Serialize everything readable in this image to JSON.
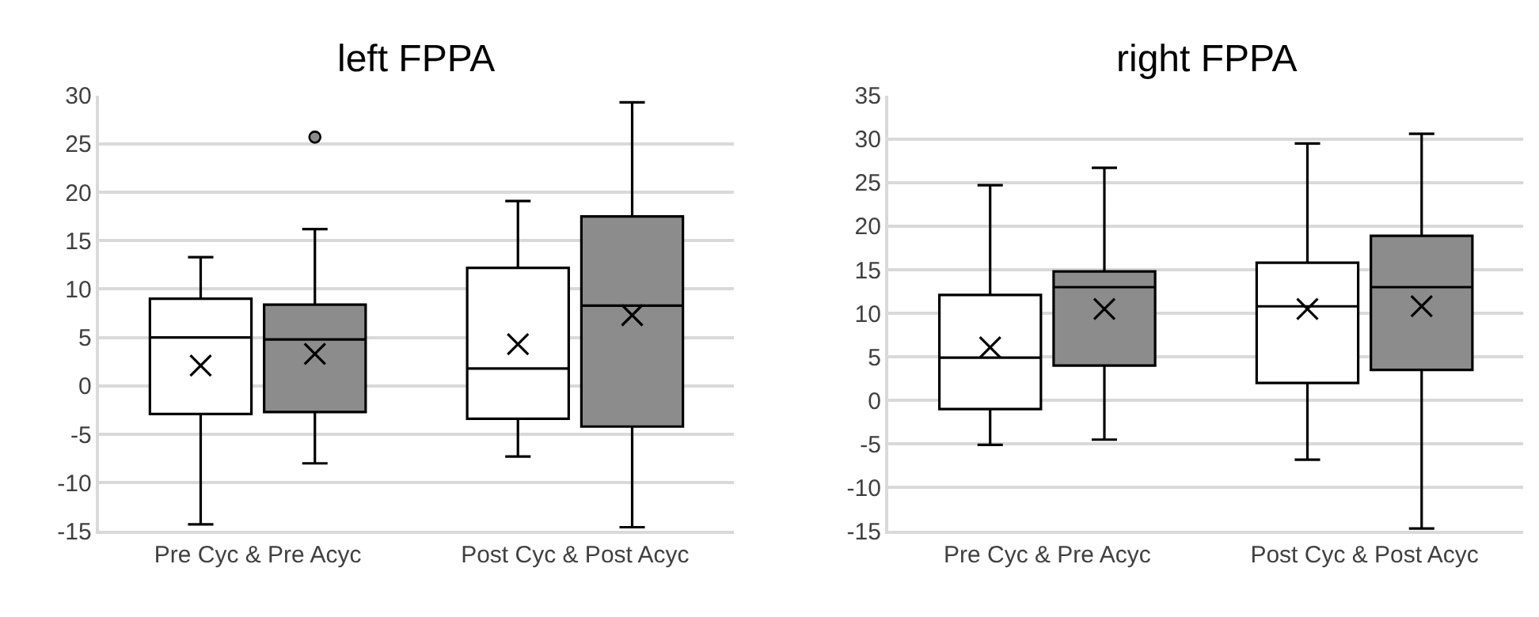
{
  "chart_data": [
    {
      "type": "box",
      "title": "left FPPA",
      "categories": [
        "Pre Cyc & Pre Acyc",
        "Post Cyc & Post Acyc"
      ],
      "ylim": [
        -15,
        30
      ],
      "yticks": [
        -15,
        -10,
        -5,
        0,
        5,
        10,
        15,
        20,
        25,
        30
      ],
      "grid": "y",
      "series": [
        {
          "color": "#ffffff",
          "boxes": [
            {
              "low": -14.3,
              "q1": -2.9,
              "median": 5.0,
              "q3": 9.0,
              "high": 13.3,
              "mean": 2.1
            },
            {
              "low": -7.3,
              "q1": -3.4,
              "median": 1.8,
              "q3": 12.2,
              "high": 19.1,
              "mean": 4.3
            }
          ]
        },
        {
          "color": "#8c8c8c",
          "boxes": [
            {
              "low": -8.0,
              "q1": -2.7,
              "median": 4.8,
              "q3": 8.4,
              "high": 16.2,
              "mean": 3.3,
              "outliers": [
                25.7
              ]
            },
            {
              "low": -14.6,
              "q1": -4.2,
              "median": 8.3,
              "q3": 17.5,
              "high": 29.3,
              "mean": 7.3
            }
          ]
        }
      ]
    },
    {
      "type": "box",
      "title": "right FPPA",
      "categories": [
        "Pre Cyc & Pre Acyc",
        "Post Cyc & Post Acyc"
      ],
      "ylim": [
        -15,
        35
      ],
      "yticks": [
        -15,
        -10,
        -5,
        0,
        5,
        10,
        15,
        20,
        25,
        30,
        35
      ],
      "grid": "y",
      "series": [
        {
          "color": "#ffffff",
          "boxes": [
            {
              "low": -5.1,
              "q1": -1.0,
              "median": 4.9,
              "q3": 12.1,
              "high": 24.7,
              "mean": 6.1
            },
            {
              "low": -6.8,
              "q1": 2.0,
              "median": 10.8,
              "q3": 15.8,
              "high": 29.5,
              "mean": 10.5
            }
          ]
        },
        {
          "color": "#8c8c8c",
          "boxes": [
            {
              "low": -4.5,
              "q1": 4.0,
              "median": 13.0,
              "q3": 14.8,
              "high": 26.7,
              "mean": 10.5
            },
            {
              "low": -14.7,
              "q1": 3.5,
              "median": 13.0,
              "q3": 18.9,
              "high": 30.6,
              "mean": 10.8
            }
          ]
        }
      ]
    }
  ]
}
